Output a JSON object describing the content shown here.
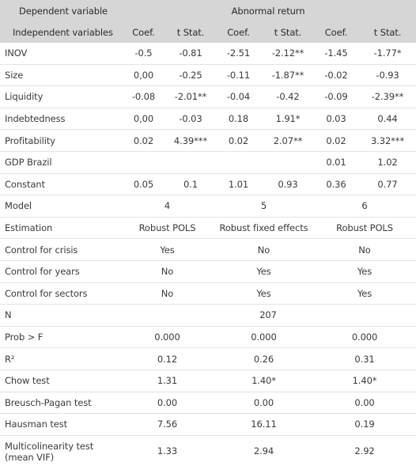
{
  "header": {
    "dep_label": "Dependent variable",
    "group_label": "Abnormal return",
    "indep_label": "Independent variables",
    "coef_label": "Coef.",
    "tstat_label": "t Stat."
  },
  "rows": [
    {
      "label": "INOV",
      "c1": "-0.5",
      "t1": "-0.81",
      "c2": "-2.51",
      "t2": "-2.12**",
      "c3": "-1.45",
      "t3": "-1.77*"
    },
    {
      "label": "Size",
      "c1": "0,00",
      "t1": "-0.25",
      "c2": "-0.11",
      "t2": "-1.87**",
      "c3": "-0.02",
      "t3": "-0.93"
    },
    {
      "label": "Liquidity",
      "c1": "-0.08",
      "t1": "-2.01**",
      "c2": "-0.04",
      "t2": "-0.42",
      "c3": "-0.09",
      "t3": "-2.39**"
    },
    {
      "label": "Indebtedness",
      "c1": "0,00",
      "t1": "-0.03",
      "c2": "0.18",
      "t2": "1.91*",
      "c3": "0.03",
      "t3": "0.44"
    },
    {
      "label": "Profitability",
      "c1": "0.02",
      "t1": "4.39***",
      "c2": "0.02",
      "t2": "2.07**",
      "c3": "0.02",
      "t3": "3.32***"
    },
    {
      "label": "GDP Brazil",
      "c1": "",
      "t1": "",
      "c2": "",
      "t2": "",
      "c3": "0.01",
      "t3": "1.02"
    },
    {
      "label": "Constant",
      "c1": "0.05",
      "t1": "0.1",
      "c2": "1.01",
      "t2": "0.93",
      "c3": "0.36",
      "t3": "0.77"
    }
  ],
  "specs": [
    {
      "label": "Model",
      "m1": "4",
      "m2": "5",
      "m3": "6"
    },
    {
      "label": "Estimation",
      "m1": "Robust POLS",
      "m2": "Robust fixed effects",
      "m3": "Robust POLS"
    },
    {
      "label": "Control for crisis",
      "m1": "Yes",
      "m2": "No",
      "m3": "No"
    },
    {
      "label": "Control for years",
      "m1": "No",
      "m2": "Yes",
      "m3": "Yes"
    },
    {
      "label": "Control for sectors",
      "m1": "No",
      "m2": "Yes",
      "m3": "Yes"
    }
  ],
  "n_row": {
    "label": "N",
    "value": "207"
  },
  "stats": [
    {
      "label": "Prob > F",
      "m1": "0.000",
      "m2": "0.000",
      "m3": "0.000"
    },
    {
      "label": "R²",
      "m1": "0.12",
      "m2": "0.26",
      "m3": "0.31"
    },
    {
      "label": "Chow test",
      "m1": "1.31",
      "m2": "1.40*",
      "m3": "1.40*"
    },
    {
      "label": "Breusch-Pagan test",
      "m1": "0.00",
      "m2": "0.00",
      "m3": "0.00"
    },
    {
      "label": "Hausman test",
      "m1": "7.56",
      "m2": "16.11",
      "m3": "0.19"
    },
    {
      "label": "Multicolinearity test (mean VIF)",
      "m1": "1.33",
      "m2": "2.94",
      "m3": "2.92"
    }
  ]
}
